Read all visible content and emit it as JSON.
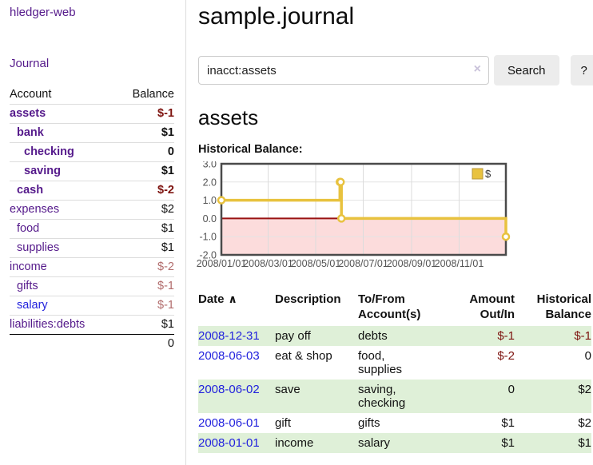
{
  "app": {
    "brand": "hledger-web"
  },
  "sidebar": {
    "journal_label": "Journal",
    "accounts_table": {
      "account_header": "Account",
      "balance_header": "Balance",
      "rows": [
        {
          "name": "assets",
          "indent": 0,
          "bold": true,
          "link": "purple",
          "balance": "$-1",
          "bclass": "neg-strong"
        },
        {
          "name": "bank",
          "indent": 1,
          "bold": true,
          "link": "purple",
          "balance": "$1",
          "bclass": ""
        },
        {
          "name": "checking",
          "indent": 2,
          "bold": true,
          "link": "purple",
          "balance": "0",
          "bclass": ""
        },
        {
          "name": "saving",
          "indent": 2,
          "bold": true,
          "link": "purple",
          "balance": "$1",
          "bclass": ""
        },
        {
          "name": "cash",
          "indent": 1,
          "bold": true,
          "link": "purple",
          "balance": "$-2",
          "bclass": "neg-strong"
        },
        {
          "name": "expenses",
          "indent": 0,
          "bold": false,
          "link": "purple",
          "balance": "$2",
          "bclass": ""
        },
        {
          "name": "food",
          "indent": 1,
          "bold": false,
          "link": "purple",
          "balance": "$1",
          "bclass": ""
        },
        {
          "name": "supplies",
          "indent": 1,
          "bold": false,
          "link": "purple",
          "balance": "$1",
          "bclass": ""
        },
        {
          "name": "income",
          "indent": 0,
          "bold": false,
          "link": "purple",
          "balance": "$-2",
          "bclass": "neg-soft"
        },
        {
          "name": "gifts",
          "indent": 1,
          "bold": false,
          "link": "purple",
          "balance": "$-1",
          "bclass": "neg-soft"
        },
        {
          "name": "salary",
          "indent": 1,
          "bold": false,
          "link": "blue",
          "balance": "$-1",
          "bclass": "neg-soft"
        },
        {
          "name": "liabilities:debts",
          "indent": 0,
          "bold": false,
          "link": "purple",
          "balance": "$1",
          "bclass": ""
        }
      ],
      "total": "0"
    }
  },
  "main": {
    "title": "sample.journal",
    "search": {
      "value": "inacct:assets",
      "clear_icon": "×",
      "search_button": "Search",
      "help_button": "?"
    },
    "account_heading": "assets",
    "chart_heading": "Historical Balance:"
  },
  "chart_data": {
    "type": "line",
    "step": true,
    "title": "Historical Balance:",
    "x_range": [
      "2008-01-01",
      "2008-12-31"
    ],
    "x_ticks": [
      "2008/01/01",
      "2008/03/01",
      "2008/05/01",
      "2008/07/01",
      "2008/09/01",
      "2008/11/01"
    ],
    "y_ticks": [
      3.0,
      2.0,
      1.0,
      0.0,
      -1.0,
      -2.0
    ],
    "ylim": [
      -2,
      3
    ],
    "grid": true,
    "legend_position": "top-right",
    "series": [
      {
        "name": "$",
        "color": "#e8c23f",
        "points": [
          [
            "2008-01-01",
            1
          ],
          [
            "2008-06-01",
            2
          ],
          [
            "2008-06-02",
            2
          ],
          [
            "2008-06-03",
            0
          ],
          [
            "2008-12-31",
            -1
          ]
        ]
      }
    ],
    "negative_region_color": "#fcdcdc",
    "zero_line_color": "#991111"
  },
  "register_table": {
    "headers": [
      {
        "text": "Date"
      },
      {
        "text": "Description"
      },
      {
        "text": "To/From\nAccount(s)"
      },
      {
        "text": "Amount\nOut/In"
      },
      {
        "text": "Historical\nBalance"
      }
    ],
    "sort_ascending_icon": "∧",
    "rows": [
      {
        "date": "2008-12-31",
        "description": "pay off",
        "accounts": "debts",
        "amount": "$-1",
        "amount_neg": true,
        "balance": "$-1",
        "balance_neg": true,
        "shade": true
      },
      {
        "date": "2008-06-03",
        "description": "eat & shop",
        "accounts": "food, supplies",
        "amount": "$-2",
        "amount_neg": true,
        "balance": "0",
        "balance_neg": false,
        "shade": false
      },
      {
        "date": "2008-06-02",
        "description": "save",
        "accounts": "saving, checking",
        "amount": "0",
        "amount_neg": false,
        "balance": "$2",
        "balance_neg": false,
        "shade": true
      },
      {
        "date": "2008-06-01",
        "description": "gift",
        "accounts": "gifts",
        "amount": "$1",
        "amount_neg": false,
        "balance": "$2",
        "balance_neg": false,
        "shade": false
      },
      {
        "date": "2008-01-01",
        "description": "income",
        "accounts": "salary",
        "amount": "$1",
        "amount_neg": false,
        "balance": "$1",
        "balance_neg": false,
        "shade": true
      }
    ]
  },
  "colors": {
    "link_purple": "#551a8b",
    "link_blue": "#2222dd",
    "negative_strong": "#7e1410",
    "negative_soft": "#b26d6d",
    "row_shade_green": "#dff0d8",
    "chart_line_gold": "#e8c23f",
    "chart_negative_pink": "#fcdcdc",
    "chart_zero_line_red": "#991111"
  }
}
